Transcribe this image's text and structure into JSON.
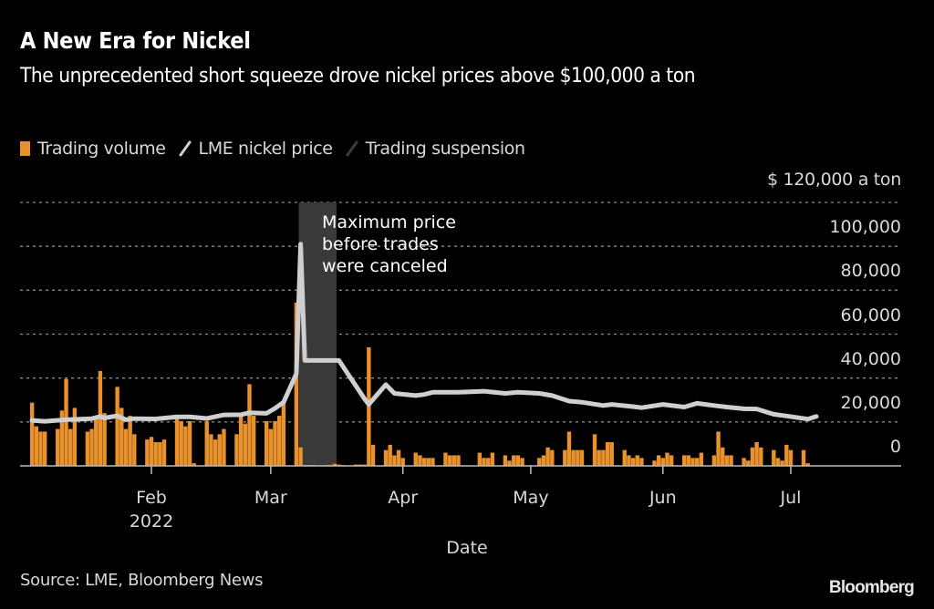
{
  "header": {
    "title": "A New Era for Nickel",
    "subtitle": "The unprecedented short squeeze drove nickel prices above $100,000 a ton"
  },
  "legend": {
    "items": [
      {
        "label": "Trading volume",
        "color": "#e8912d",
        "kind": "bar"
      },
      {
        "label": "LME nickel price",
        "color": "#cfcfcf",
        "kind": "line"
      },
      {
        "label": "Trading suspension",
        "color": "#3a3a3a",
        "kind": "band"
      }
    ]
  },
  "footer": {
    "source": "Source: LME, Bloomberg News",
    "brand": "Bloomberg"
  },
  "chart_data": {
    "type": "bar+line",
    "title": "A New Era for Nickel",
    "subtitle": "The unprecedented short squeeze drove nickel prices above $100,000 a ton",
    "xlabel": "Date",
    "ylabel": "$ a ton",
    "y_unit_label": "$ 120,000  a ton",
    "ylim": [
      0,
      120000
    ],
    "yticks": [
      0,
      20000,
      40000,
      60000,
      80000,
      100000,
      120000
    ],
    "ytick_labels": [
      "0",
      "20,000",
      "40,000",
      "60,000",
      "80,000",
      "100,000",
      "$ 120,000"
    ],
    "grid": true,
    "legend_position": "top-left",
    "x_range": [
      "2022-01-03",
      "2022-07-31"
    ],
    "xticks": [
      {
        "date": "2022-02-01",
        "label": "Feb",
        "sublabel": "2022"
      },
      {
        "date": "2022-03-01",
        "label": "Mar",
        "sublabel": ""
      },
      {
        "date": "2022-04-01",
        "label": "Apr",
        "sublabel": ""
      },
      {
        "date": "2022-05-01",
        "label": "May",
        "sublabel": ""
      },
      {
        "date": "2022-06-01",
        "label": "Jun",
        "sublabel": ""
      },
      {
        "date": "2022-07-01",
        "label": "Jul",
        "sublabel": ""
      }
    ],
    "suspension": {
      "start": "2022-03-08",
      "end": "2022-03-16",
      "label": "Trading suspension"
    },
    "annotation": {
      "text": "Maximum price\nbefore trades\nwere canceled",
      "date": "2022-03-08",
      "value": 101000
    },
    "volume_note": "Trading volume has no labeled axis; values are relative (0–100 of chart height)",
    "series": [
      {
        "name": "Trading volume",
        "type": "bar",
        "color": "#e8912d",
        "points": [
          [
            "2022-01-04",
            24
          ],
          [
            "2022-01-05",
            15
          ],
          [
            "2022-01-06",
            13
          ],
          [
            "2022-01-07",
            13
          ],
          [
            "2022-01-10",
            14
          ],
          [
            "2022-01-11",
            21
          ],
          [
            "2022-01-12",
            33
          ],
          [
            "2022-01-13",
            14
          ],
          [
            "2022-01-14",
            22
          ],
          [
            "2022-01-17",
            13
          ],
          [
            "2022-01-18",
            14
          ],
          [
            "2022-01-19",
            18
          ],
          [
            "2022-01-20",
            36
          ],
          [
            "2022-01-21",
            20
          ],
          [
            "2022-01-24",
            30
          ],
          [
            "2022-01-25",
            22
          ],
          [
            "2022-01-26",
            14
          ],
          [
            "2022-01-27",
            19
          ],
          [
            "2022-01-28",
            12
          ],
          [
            "2022-01-31",
            10
          ],
          [
            "2022-02-01",
            11
          ],
          [
            "2022-02-02",
            9
          ],
          [
            "2022-02-03",
            9
          ],
          [
            "2022-02-04",
            10
          ],
          [
            "2022-02-07",
            18
          ],
          [
            "2022-02-08",
            17
          ],
          [
            "2022-02-09",
            15
          ],
          [
            "2022-02-10",
            17
          ],
          [
            "2022-02-11",
            1
          ],
          [
            "2022-02-14",
            17
          ],
          [
            "2022-02-15",
            12
          ],
          [
            "2022-02-16",
            10
          ],
          [
            "2022-02-17",
            12
          ],
          [
            "2022-02-18",
            14
          ],
          [
            "2022-02-21",
            12
          ],
          [
            "2022-02-22",
            20
          ],
          [
            "2022-02-23",
            16
          ],
          [
            "2022-02-24",
            31
          ],
          [
            "2022-02-25",
            19
          ],
          [
            "2022-02-28",
            17
          ],
          [
            "2022-03-01",
            14
          ],
          [
            "2022-03-02",
            17
          ],
          [
            "2022-03-03",
            19
          ],
          [
            "2022-03-04",
            24
          ],
          [
            "2022-03-07",
            62
          ],
          [
            "2022-03-08",
            7
          ],
          [
            "2022-03-09",
            0.3
          ],
          [
            "2022-03-10",
            0.3
          ],
          [
            "2022-03-11",
            0.3
          ],
          [
            "2022-03-14",
            0.3
          ],
          [
            "2022-03-15",
            0.3
          ],
          [
            "2022-03-16",
            0.8
          ],
          [
            "2022-03-17",
            0.5
          ],
          [
            "2022-03-18",
            0.3
          ],
          [
            "2022-03-21",
            0.5
          ],
          [
            "2022-03-22",
            0.5
          ],
          [
            "2022-03-23",
            0.5
          ],
          [
            "2022-03-24",
            45
          ],
          [
            "2022-03-25",
            8
          ],
          [
            "2022-03-28",
            6
          ],
          [
            "2022-03-29",
            8
          ],
          [
            "2022-03-30",
            4
          ],
          [
            "2022-03-31",
            6
          ],
          [
            "2022-04-01",
            3
          ],
          [
            "2022-04-04",
            5
          ],
          [
            "2022-04-05",
            4
          ],
          [
            "2022-04-06",
            3
          ],
          [
            "2022-04-07",
            3
          ],
          [
            "2022-04-08",
            3
          ],
          [
            "2022-04-11",
            5
          ],
          [
            "2022-04-12",
            4
          ],
          [
            "2022-04-13",
            4
          ],
          [
            "2022-04-14",
            4
          ],
          [
            "2022-04-19",
            5
          ],
          [
            "2022-04-20",
            3
          ],
          [
            "2022-04-21",
            3
          ],
          [
            "2022-04-22",
            5
          ],
          [
            "2022-04-25",
            4
          ],
          [
            "2022-04-26",
            2
          ],
          [
            "2022-04-27",
            4
          ],
          [
            "2022-04-28",
            4
          ],
          [
            "2022-04-29",
            3
          ],
          [
            "2022-05-03",
            3
          ],
          [
            "2022-05-04",
            4
          ],
          [
            "2022-05-05",
            7
          ],
          [
            "2022-05-06",
            6
          ],
          [
            "2022-05-09",
            6
          ],
          [
            "2022-05-10",
            13
          ],
          [
            "2022-05-11",
            6
          ],
          [
            "2022-05-12",
            6
          ],
          [
            "2022-05-13",
            6
          ],
          [
            "2022-05-16",
            12
          ],
          [
            "2022-05-17",
            6
          ],
          [
            "2022-05-18",
            6
          ],
          [
            "2022-05-19",
            9
          ],
          [
            "2022-05-20",
            9
          ],
          [
            "2022-05-23",
            6
          ],
          [
            "2022-05-24",
            4
          ],
          [
            "2022-05-25",
            3
          ],
          [
            "2022-05-26",
            4
          ],
          [
            "2022-05-27",
            3
          ],
          [
            "2022-05-30",
            2
          ],
          [
            "2022-05-31",
            4
          ],
          [
            "2022-06-01",
            3
          ],
          [
            "2022-06-02",
            5
          ],
          [
            "2022-06-03",
            4
          ],
          [
            "2022-06-06",
            4
          ],
          [
            "2022-06-07",
            4
          ],
          [
            "2022-06-08",
            3
          ],
          [
            "2022-06-09",
            3
          ],
          [
            "2022-06-10",
            5
          ],
          [
            "2022-06-13",
            4
          ],
          [
            "2022-06-14",
            13
          ],
          [
            "2022-06-15",
            7
          ],
          [
            "2022-06-16",
            4
          ],
          [
            "2022-06-17",
            4
          ],
          [
            "2022-06-20",
            3
          ],
          [
            "2022-06-21",
            2
          ],
          [
            "2022-06-22",
            7
          ],
          [
            "2022-06-23",
            9
          ],
          [
            "2022-06-24",
            7
          ],
          [
            "2022-06-27",
            6
          ],
          [
            "2022-06-28",
            3
          ],
          [
            "2022-06-29",
            2
          ],
          [
            "2022-06-30",
            8
          ],
          [
            "2022-07-01",
            6
          ],
          [
            "2022-07-04",
            6
          ],
          [
            "2022-07-05",
            1
          ]
        ]
      },
      {
        "name": "LME nickel price",
        "type": "line",
        "color": "#cfcfcf",
        "points": [
          [
            "2022-01-04",
            20700
          ],
          [
            "2022-01-07",
            20300
          ],
          [
            "2022-01-12",
            21000
          ],
          [
            "2022-01-18",
            21500
          ],
          [
            "2022-01-20",
            22500
          ],
          [
            "2022-01-21",
            21800
          ],
          [
            "2022-01-24",
            22800
          ],
          [
            "2022-01-26",
            21000
          ],
          [
            "2022-01-28",
            21500
          ],
          [
            "2022-02-02",
            21400
          ],
          [
            "2022-02-07",
            22300
          ],
          [
            "2022-02-10",
            22300
          ],
          [
            "2022-02-14",
            21600
          ],
          [
            "2022-02-18",
            23200
          ],
          [
            "2022-02-22",
            23300
          ],
          [
            "2022-02-24",
            24200
          ],
          [
            "2022-02-28",
            23900
          ],
          [
            "2022-03-02",
            26200
          ],
          [
            "2022-03-04",
            29000
          ],
          [
            "2022-03-07",
            42000
          ],
          [
            "2022-03-08",
            101000
          ],
          [
            "2022-03-09",
            48000
          ],
          [
            "2022-03-15",
            48000
          ],
          [
            "2022-03-17",
            48000
          ],
          [
            "2022-03-23",
            30500
          ],
          [
            "2022-03-24",
            28000
          ],
          [
            "2022-03-28",
            37000
          ],
          [
            "2022-03-30",
            33000
          ],
          [
            "2022-04-04",
            32000
          ],
          [
            "2022-04-06",
            32500
          ],
          [
            "2022-04-08",
            33500
          ],
          [
            "2022-04-14",
            33500
          ],
          [
            "2022-04-20",
            34000
          ],
          [
            "2022-04-25",
            33000
          ],
          [
            "2022-04-28",
            33500
          ],
          [
            "2022-05-03",
            33000
          ],
          [
            "2022-05-06",
            32000
          ],
          [
            "2022-05-10",
            29500
          ],
          [
            "2022-05-13",
            29000
          ],
          [
            "2022-05-18",
            27500
          ],
          [
            "2022-05-20",
            28000
          ],
          [
            "2022-05-25",
            27000
          ],
          [
            "2022-05-27",
            26500
          ],
          [
            "2022-06-01",
            28000
          ],
          [
            "2022-06-06",
            26800
          ],
          [
            "2022-06-09",
            28500
          ],
          [
            "2022-06-13",
            27500
          ],
          [
            "2022-06-16",
            26800
          ],
          [
            "2022-06-20",
            26000
          ],
          [
            "2022-06-23",
            25900
          ],
          [
            "2022-06-27",
            23500
          ],
          [
            "2022-06-30",
            22700
          ],
          [
            "2022-07-05",
            21300
          ],
          [
            "2022-07-07",
            22500
          ]
        ]
      }
    ]
  }
}
